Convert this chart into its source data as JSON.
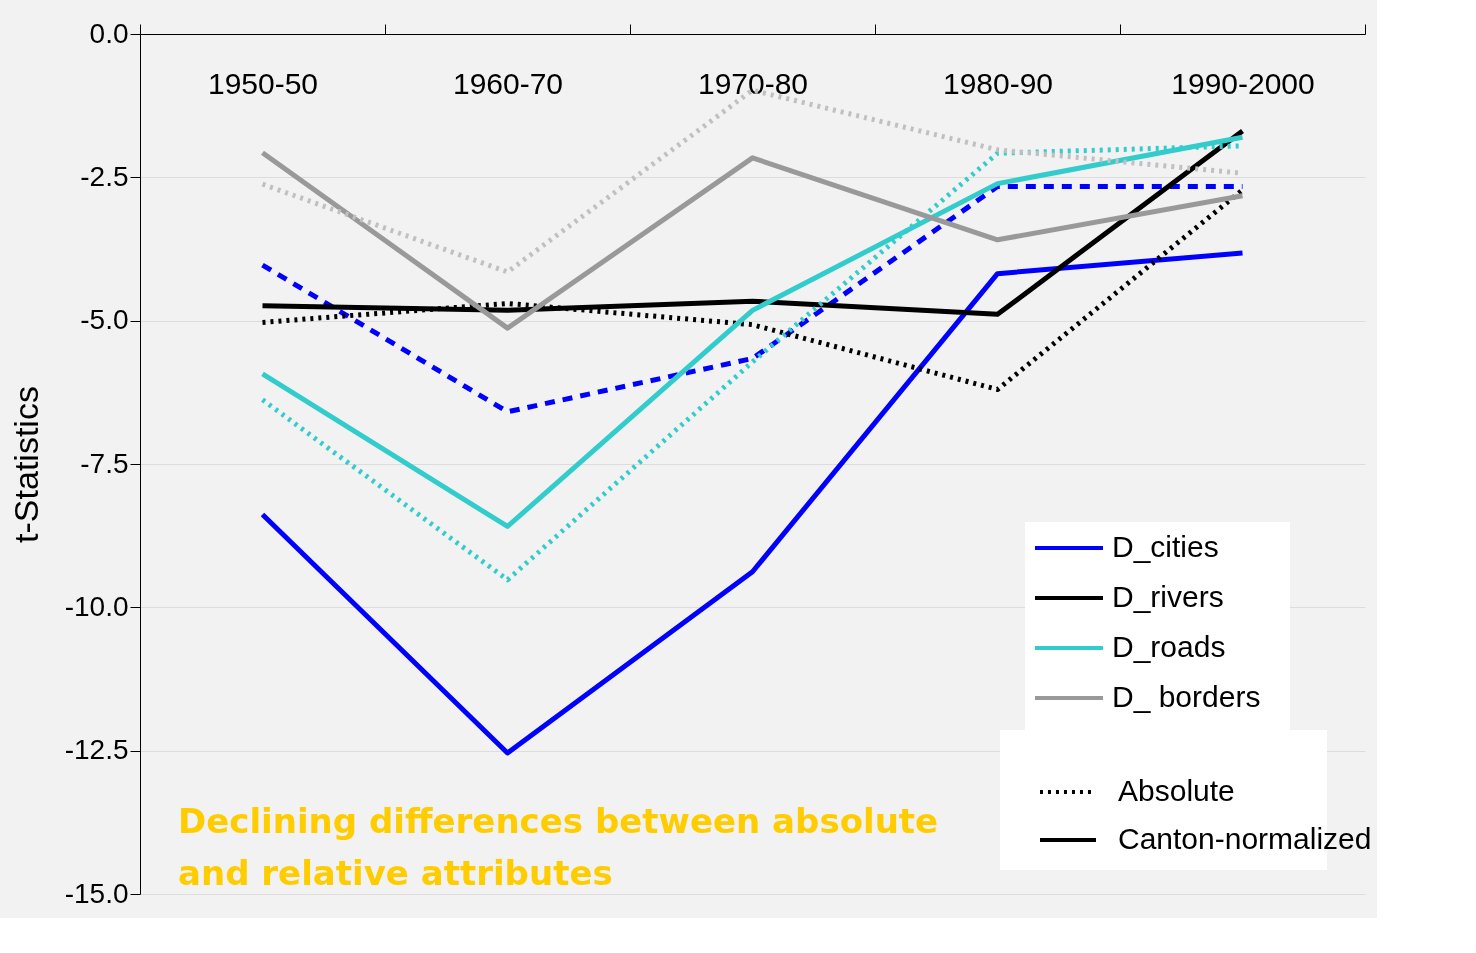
{
  "chart_data": {
    "type": "line",
    "ylabel": "t-Statistics",
    "categories": [
      "1950-50",
      "1960-70",
      "1970-80",
      "1980-90",
      "1990-2000"
    ],
    "ylim": [
      -15,
      0
    ],
    "yticks": [
      {
        "value": 0,
        "label": "0.0"
      },
      {
        "value": -2.5,
        "label": "-2.5"
      },
      {
        "value": -5,
        "label": "-5.0"
      },
      {
        "value": -7.5,
        "label": "-7.5"
      },
      {
        "value": -10,
        "label": "-10.0"
      },
      {
        "value": -12.5,
        "label": "-12.5"
      },
      {
        "value": -15,
        "label": "-15.0"
      }
    ],
    "grid": "y",
    "legend": "bottom right",
    "marker": "none",
    "series": [
      {
        "name": "D_cities",
        "color": "#0000ff",
        "line_style": "solid",
        "values": [
          -8.38,
          -12.54,
          -9.38,
          -4.18,
          -3.82
        ]
      },
      {
        "color": "#0000ff",
        "line_style": "dashed",
        "values": [
          -4.03,
          -6.59,
          -5.66,
          -2.66,
          -2.66
        ]
      },
      {
        "name": "D_rivers",
        "color": "#000000",
        "line_style": "solid",
        "values": [
          -4.74,
          -4.82,
          -4.66,
          -4.89,
          -1.69
        ]
      },
      {
        "color": "#000000",
        "line_style": "dotted",
        "values": [
          -5.03,
          -4.7,
          -5.07,
          -6.2,
          -2.72
        ]
      },
      {
        "name": "D_roads",
        "color": "#33cccc",
        "line_style": "solid",
        "values": [
          -5.93,
          -8.59,
          -4.82,
          -2.61,
          -1.8
        ]
      },
      {
        "color": "#33cccc",
        "line_style": "dotted",
        "values": [
          -6.38,
          -9.52,
          -5.72,
          -2.08,
          -1.95
        ]
      },
      {
        "name": "D_ borders",
        "color": "#999999",
        "line_style": "solid",
        "values": [
          -2.07,
          -5.13,
          -2.16,
          -3.59,
          -2.82
        ]
      },
      {
        "color": "#c0c0c0",
        "line_style": "dotted",
        "values": [
          -2.62,
          -4.15,
          -0.98,
          -2.02,
          -2.43
        ]
      }
    ],
    "annotations": [
      "Declining differences between absolute\nand relative attributes",
      "Absolute",
      "Canton-normalized"
    ]
  }
}
